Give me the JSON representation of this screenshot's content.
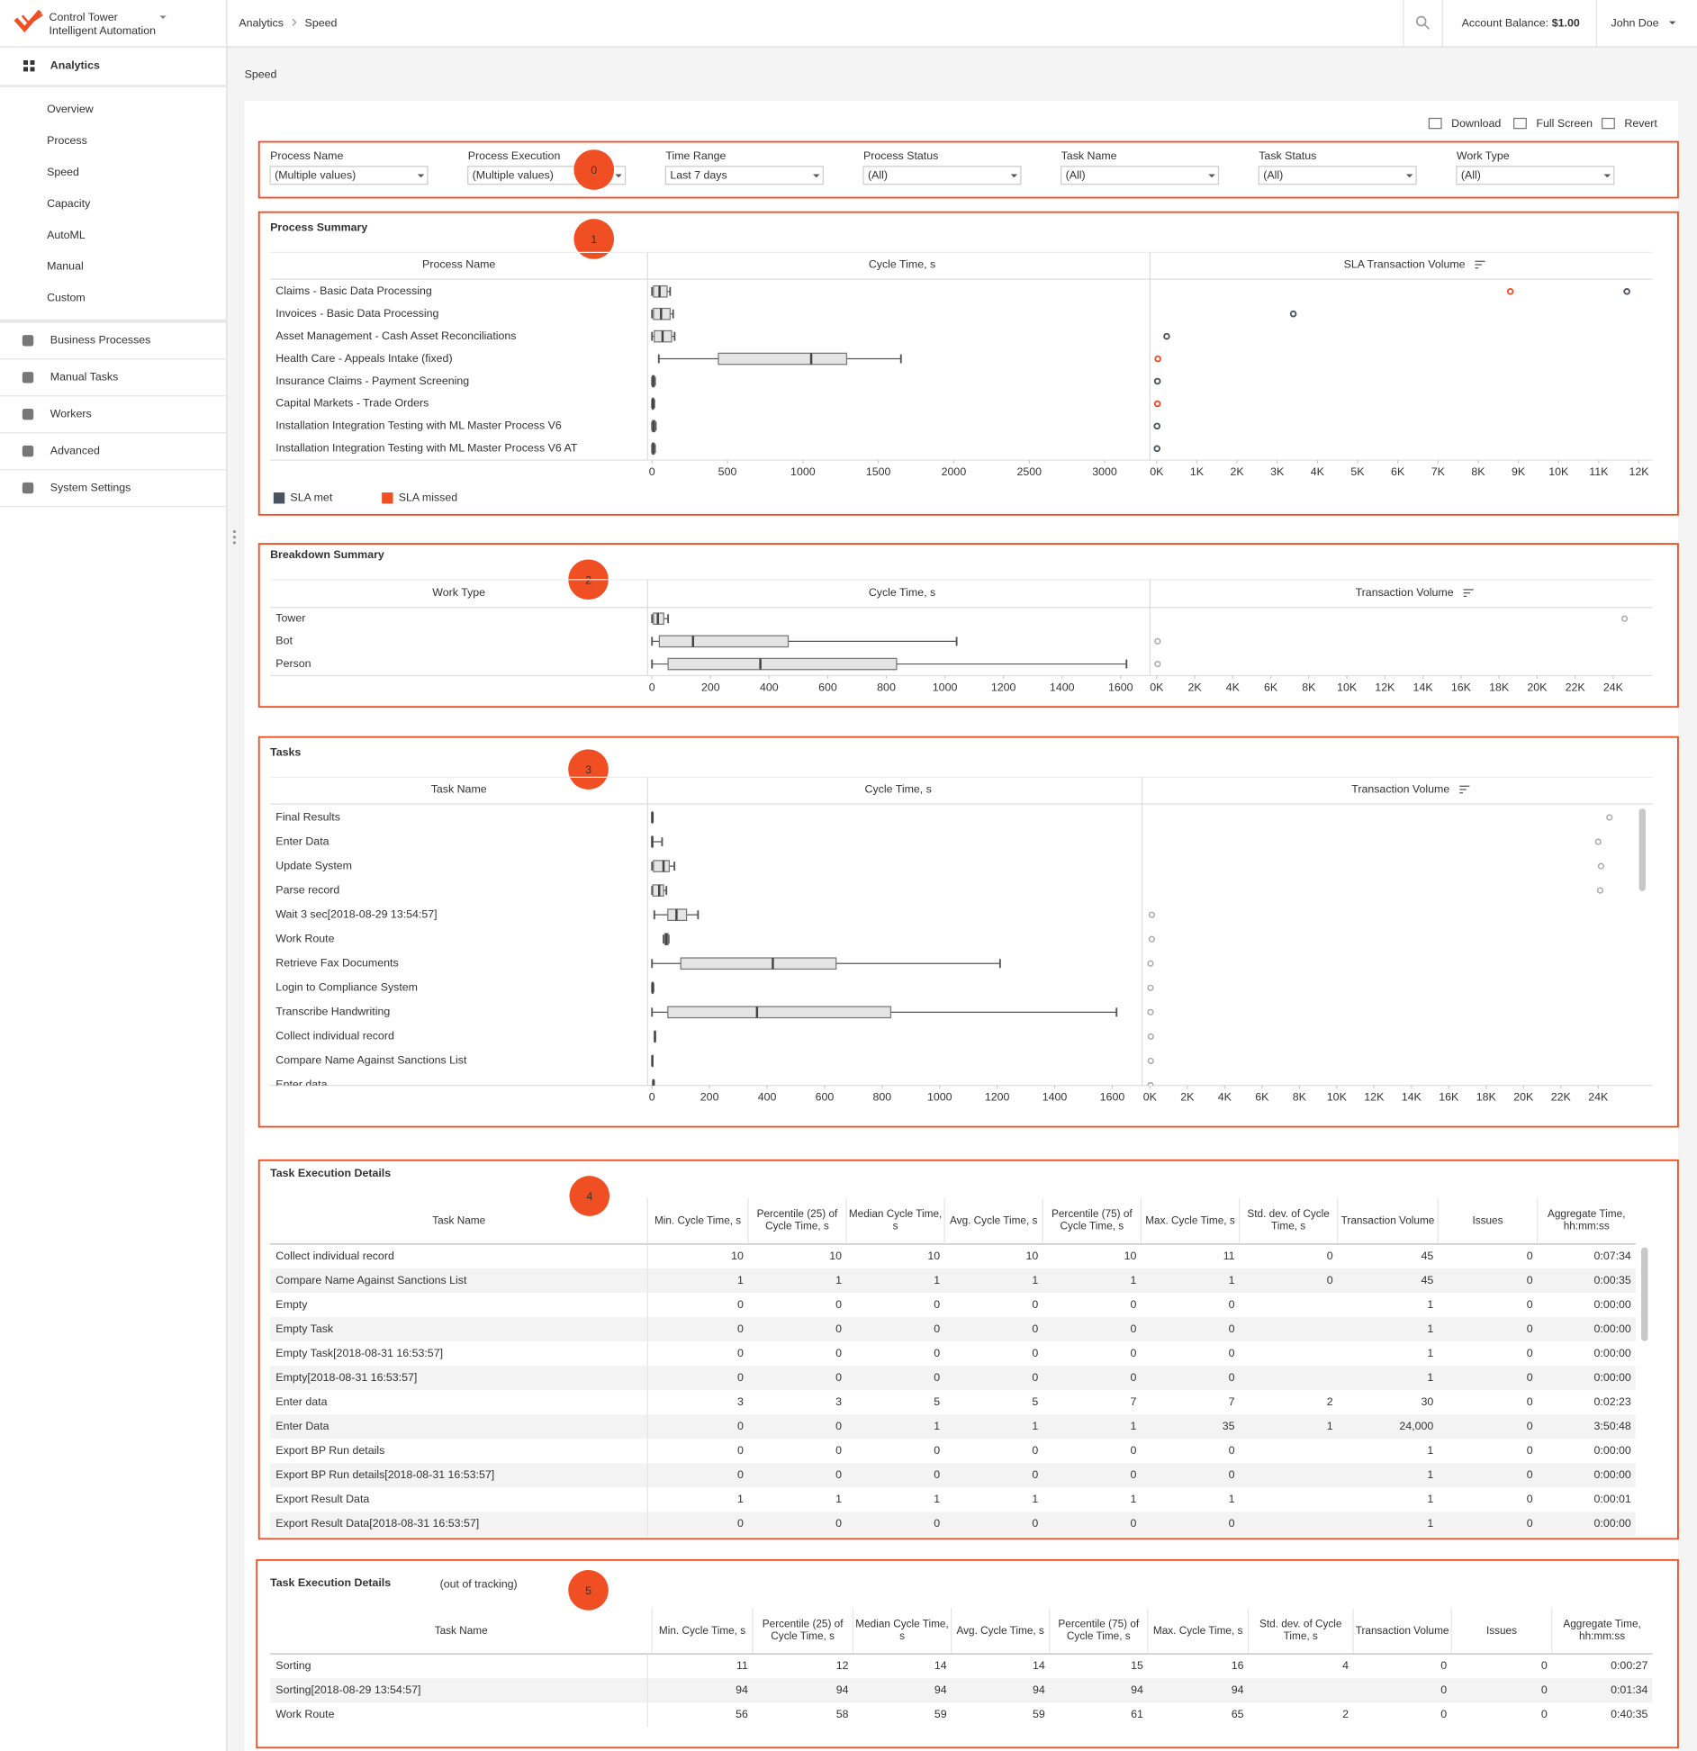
{
  "header": {
    "logo_title": "Control Tower",
    "logo_subtitle": "Intelligent Automation",
    "breadcrumb": [
      "Analytics",
      "Speed"
    ],
    "balance_label": "Account Balance:",
    "balance_value": "$1.00",
    "user": "John Doe"
  },
  "sidebar": {
    "section": "Analytics",
    "items": [
      "Overview",
      "Process",
      "Speed",
      "Capacity",
      "AutoML",
      "Manual",
      "Custom"
    ],
    "active_item": "Speed",
    "nav": [
      "Business Processes",
      "Manual Tasks",
      "Workers",
      "Advanced",
      "System Settings"
    ]
  },
  "page_title": "Speed",
  "toolbar": [
    "Download",
    "Full Screen",
    "Revert"
  ],
  "filters": [
    {
      "label": "Process Name",
      "value": "(Multiple values)"
    },
    {
      "label": "Process Execution",
      "value": "(Multiple values)"
    },
    {
      "label": "Time Range",
      "value": "Last 7 days"
    },
    {
      "label": "Process Status",
      "value": "(All)"
    },
    {
      "label": "Task Name",
      "value": "(All)"
    },
    {
      "label": "Task Status",
      "value": "(All)"
    },
    {
      "label": "Work Type",
      "value": "(All)"
    }
  ],
  "markers": [
    "0",
    "1",
    "2",
    "3",
    "4",
    "5"
  ],
  "process_summary": {
    "title": "Process Summary",
    "columns": [
      "Process Name",
      "Cycle Time, s",
      "SLA Transaction Volume"
    ],
    "rows": [
      {
        "name": "Claims - Basic Data Processing",
        "cycle": {
          "min": 0,
          "q1": 10,
          "median": 50,
          "q3": 100,
          "max": 120
        },
        "volumes": [
          {
            "value": 8800,
            "sla": "SLA missed"
          },
          {
            "value": 11700,
            "sla": "SLA met"
          }
        ]
      },
      {
        "name": "Invoices - Basic Data Processing",
        "cycle": {
          "min": 0,
          "q1": 10,
          "median": 60,
          "q3": 120,
          "max": 140
        },
        "volumes": [
          {
            "value": 3400,
            "sla": "SLA met"
          }
        ]
      },
      {
        "name": "Asset Management - Cash Asset Reconciliations",
        "cycle": {
          "min": 0,
          "q1": 15,
          "median": 70,
          "q3": 130,
          "max": 150
        },
        "volumes": [
          {
            "value": 250,
            "sla": "SLA met"
          }
        ]
      },
      {
        "name": "Health Care - Appeals Intake (fixed)",
        "cycle": {
          "min": 45,
          "q1": 440,
          "median": 1055,
          "q3": 1290,
          "max": 1650
        },
        "volumes": [
          {
            "value": 30,
            "sla": "SLA missed"
          }
        ]
      },
      {
        "name": "Insurance Claims - Payment Screening",
        "cycle": {
          "min": 0,
          "q1": 2,
          "median": 8,
          "q3": 15,
          "max": 20
        },
        "volumes": [
          {
            "value": 20,
            "sla": "SLA met"
          }
        ]
      },
      {
        "name": "Capital Markets - Trade Orders",
        "cycle": {
          "min": 0,
          "q1": 2,
          "median": 6,
          "q3": 10,
          "max": 15
        },
        "volumes": [
          {
            "value": 20,
            "sla": "SLA missed"
          }
        ]
      },
      {
        "name": "Installation Integration Testing with ML Master Process V6",
        "cycle": {
          "min": 0,
          "q1": 3,
          "median": 10,
          "q3": 20,
          "max": 25
        },
        "volumes": [
          {
            "value": 10,
            "sla": "SLA met"
          }
        ]
      },
      {
        "name": "Installation Integration Testing with ML Master Process V6 AT",
        "cycle": {
          "min": 0,
          "q1": 2,
          "median": 8,
          "q3": 15,
          "max": 20
        },
        "volumes": [
          {
            "value": 10,
            "sla": "SLA met"
          }
        ]
      }
    ],
    "cycle_xlim": [
      0,
      3300
    ],
    "cycle_ticks": [
      0,
      500,
      1000,
      1500,
      2000,
      2500,
      3000
    ],
    "volume_xlim": [
      0,
      12500
    ],
    "volume_ticks": [
      {
        "value": 0,
        "label": "0K"
      },
      {
        "value": 1000,
        "label": "1K"
      },
      {
        "value": 2000,
        "label": "2K"
      },
      {
        "value": 3000,
        "label": "3K"
      },
      {
        "value": 4000,
        "label": "4K"
      },
      {
        "value": 5000,
        "label": "5K"
      },
      {
        "value": 6000,
        "label": "6K"
      },
      {
        "value": 7000,
        "label": "7K"
      },
      {
        "value": 8000,
        "label": "8K"
      },
      {
        "value": 9000,
        "label": "9K"
      },
      {
        "value": 10000,
        "label": "10K"
      },
      {
        "value": 11000,
        "label": "11K"
      },
      {
        "value": 12000,
        "label": "12K"
      }
    ],
    "legend": [
      {
        "name": "SLA met",
        "color": "#4a545e"
      },
      {
        "name": "SLA missed",
        "color": "#f04e23"
      }
    ]
  },
  "breakdown_summary": {
    "title": "Breakdown Summary",
    "columns": [
      "Work Type",
      "Cycle Time, s",
      "Transaction Volume"
    ],
    "rows": [
      {
        "name": "Tower",
        "cycle": {
          "min": 0,
          "q1": 5,
          "median": 20,
          "q3": 40,
          "max": 55
        },
        "volume": 24600
      },
      {
        "name": "Bot",
        "cycle": {
          "min": 0,
          "q1": 25,
          "median": 140,
          "q3": 465,
          "max": 1040
        },
        "volume": 50
      },
      {
        "name": "Person",
        "cycle": {
          "min": 0,
          "q1": 55,
          "median": 370,
          "q3": 835,
          "max": 1620
        },
        "volume": 50
      }
    ],
    "cycle_xlim": [
      0,
      1700
    ],
    "cycle_ticks": [
      0,
      200,
      400,
      600,
      800,
      1000,
      1200,
      1400,
      1600
    ],
    "volume_xlim": [
      0,
      26000
    ],
    "volume_ticks": [
      {
        "value": 0,
        "label": "0K"
      },
      {
        "value": 2000,
        "label": "2K"
      },
      {
        "value": 4000,
        "label": "4K"
      },
      {
        "value": 6000,
        "label": "6K"
      },
      {
        "value": 8000,
        "label": "8K"
      },
      {
        "value": 10000,
        "label": "10K"
      },
      {
        "value": 12000,
        "label": "12K"
      },
      {
        "value": 14000,
        "label": "14K"
      },
      {
        "value": 16000,
        "label": "16K"
      },
      {
        "value": 18000,
        "label": "18K"
      },
      {
        "value": 20000,
        "label": "20K"
      },
      {
        "value": 22000,
        "label": "22K"
      },
      {
        "value": 24000,
        "label": "24K"
      }
    ]
  },
  "tasks": {
    "title": "Tasks",
    "columns": [
      "Task Name",
      "Cycle Time, s",
      "Transaction Volume"
    ],
    "rows": [
      {
        "name": "Final Results",
        "cycle": {
          "min": 0,
          "q1": 0,
          "median": 1,
          "q3": 2,
          "max": 3
        },
        "volume": 24600
      },
      {
        "name": "Enter Data",
        "cycle": {
          "min": 0,
          "q1": 0,
          "median": 1,
          "q3": 1,
          "max": 35
        },
        "volume": 24000
      },
      {
        "name": "Update System",
        "cycle": {
          "min": 0,
          "q1": 5,
          "median": 40,
          "q3": 60,
          "max": 78
        },
        "volume": 24150
      },
      {
        "name": "Parse record",
        "cycle": {
          "min": 0,
          "q1": 3,
          "median": 25,
          "q3": 40,
          "max": 50
        },
        "volume": 24100
      },
      {
        "name": "Wait 3 sec[2018-08-29 13:54:57]",
        "cycle": {
          "min": 8,
          "q1": 55,
          "median": 85,
          "q3": 120,
          "max": 160
        },
        "volume": 100
      },
      {
        "name": "Work Route",
        "cycle": {
          "min": 40,
          "q1": 45,
          "median": 50,
          "q3": 56,
          "max": 58
        },
        "volume": 100
      },
      {
        "name": "Retrieve Fax Documents",
        "cycle": {
          "min": 0,
          "q1": 100,
          "median": 420,
          "q3": 640,
          "max": 1210
        },
        "volume": 30
      },
      {
        "name": "Login to Compliance System",
        "cycle": {
          "min": 0,
          "q1": 1,
          "median": 2,
          "q3": 3,
          "max": 5
        },
        "volume": 30
      },
      {
        "name": "Transcribe Handwriting",
        "cycle": {
          "min": 0,
          "q1": 55,
          "median": 365,
          "q3": 830,
          "max": 1615
        },
        "volume": 30
      },
      {
        "name": "Collect individual record",
        "cycle": {
          "min": 10,
          "q1": 10,
          "median": 10,
          "q3": 10,
          "max": 11
        },
        "volume": 45
      },
      {
        "name": "Compare Name Against Sanctions List",
        "cycle": {
          "min": 1,
          "q1": 1,
          "median": 1,
          "q3": 1,
          "max": 1
        },
        "volume": 45
      },
      {
        "name": "Enter data",
        "cycle": {
          "min": 3,
          "q1": 3,
          "median": 5,
          "q3": 7,
          "max": 7
        },
        "volume": 30
      }
    ],
    "cycle_xlim": [
      0,
      1700
    ],
    "cycle_ticks": [
      0,
      200,
      400,
      600,
      800,
      1000,
      1200,
      1400,
      1600
    ],
    "volume_xlim": [
      0,
      26000
    ],
    "volume_ticks": [
      {
        "value": 0,
        "label": "0K"
      },
      {
        "value": 2000,
        "label": "2K"
      },
      {
        "value": 4000,
        "label": "4K"
      },
      {
        "value": 6000,
        "label": "6K"
      },
      {
        "value": 8000,
        "label": "8K"
      },
      {
        "value": 10000,
        "label": "10K"
      },
      {
        "value": 12000,
        "label": "12K"
      },
      {
        "value": 14000,
        "label": "14K"
      },
      {
        "value": 16000,
        "label": "16K"
      },
      {
        "value": 18000,
        "label": "18K"
      },
      {
        "value": 20000,
        "label": "20K"
      },
      {
        "value": 22000,
        "label": "22K"
      },
      {
        "value": 24000,
        "label": "24K"
      }
    ]
  },
  "task_details": {
    "title": "Task Execution Details",
    "columns": [
      "Task Name",
      "Min. Cycle Time, s",
      "Percentile (25) of Cycle Time, s",
      "Median Cycle Time, s",
      "Avg. Cycle Time, s",
      "Percentile (75) of Cycle Time, s",
      "Max. Cycle Time, s",
      "Std. dev. of Cycle Time, s",
      "Transaction Volume",
      "Issues",
      "Aggregate Time, hh:mm:ss"
    ],
    "rows": [
      [
        "Collect individual record",
        "10",
        "10",
        "10",
        "10",
        "10",
        "11",
        "0",
        "45",
        "0",
        "0:07:34"
      ],
      [
        "Compare Name Against Sanctions List",
        "1",
        "1",
        "1",
        "1",
        "1",
        "1",
        "0",
        "45",
        "0",
        "0:00:35"
      ],
      [
        "Empty",
        "0",
        "0",
        "0",
        "0",
        "0",
        "0",
        null,
        "1",
        "0",
        "0:00:00"
      ],
      [
        "Empty Task",
        "0",
        "0",
        "0",
        "0",
        "0",
        "0",
        null,
        "1",
        "0",
        "0:00:00"
      ],
      [
        "Empty Task[2018-08-31 16:53:57]",
        "0",
        "0",
        "0",
        "0",
        "0",
        "0",
        null,
        "1",
        "0",
        "0:00:00"
      ],
      [
        "Empty[2018-08-31 16:53:57]",
        "0",
        "0",
        "0",
        "0",
        "0",
        "0",
        null,
        "1",
        "0",
        "0:00:00"
      ],
      [
        "Enter data",
        "3",
        "3",
        "5",
        "5",
        "7",
        "7",
        "2",
        "30",
        "0",
        "0:02:23"
      ],
      [
        "Enter Data",
        "0",
        "0",
        "1",
        "1",
        "1",
        "35",
        "1",
        "24,000",
        "0",
        "3:50:48"
      ],
      [
        "Export BP Run details",
        "0",
        "0",
        "0",
        "0",
        "0",
        "0",
        null,
        "1",
        "0",
        "0:00:00"
      ],
      [
        "Export BP Run details[2018-08-31 16:53:57]",
        "0",
        "0",
        "0",
        "0",
        "0",
        "0",
        null,
        "1",
        "0",
        "0:00:00"
      ],
      [
        "Export Result Data",
        "1",
        "1",
        "1",
        "1",
        "1",
        "1",
        null,
        "1",
        "0",
        "0:00:01"
      ],
      [
        "Export Result Data[2018-08-31 16:53:57]",
        "0",
        "0",
        "0",
        "0",
        "0",
        "0",
        null,
        "1",
        "0",
        "0:00:00"
      ]
    ]
  },
  "task_details_out": {
    "title": "Task Execution Details",
    "note": "(out of tracking)",
    "columns": [
      "Task Name",
      "Min. Cycle Time, s",
      "Percentile (25) of Cycle Time, s",
      "Median Cycle Time, s",
      "Avg. Cycle Time, s",
      "Percentile (75) of Cycle Time, s",
      "Max. Cycle Time, s",
      "Std. dev. of Cycle Time, s",
      "Transaction Volume",
      "Issues",
      "Aggregate Time, hh:mm:ss"
    ],
    "rows": [
      [
        "Sorting",
        "11",
        "12",
        "14",
        "14",
        "15",
        "16",
        "4",
        "0",
        "0",
        "0:00:27"
      ],
      [
        "Sorting[2018-08-29 13:54:57]",
        "94",
        "94",
        "94",
        "94",
        "94",
        "94",
        null,
        "0",
        "0",
        "0:01:34"
      ],
      [
        "Work Route",
        "56",
        "58",
        "59",
        "59",
        "61",
        "65",
        "2",
        "0",
        "0",
        "0:40:35"
      ]
    ]
  }
}
